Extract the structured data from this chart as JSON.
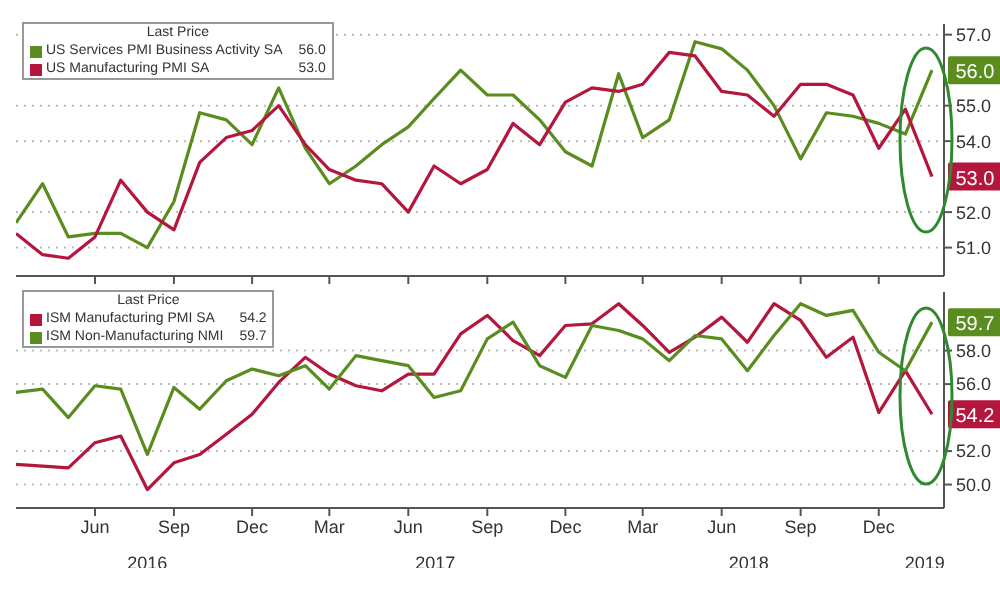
{
  "chart_data": [
    {
      "type": "line",
      "legend_title": "Last Price",
      "legend": "top left",
      "grid": true,
      "line_style": "solid",
      "marker": "none",
      "tick_labels": "y",
      "x": [
        "2016-03",
        "2016-04",
        "2016-05",
        "2016-06",
        "2016-07",
        "2016-08",
        "2016-09",
        "2016-10",
        "2016-11",
        "2016-12",
        "2017-01",
        "2017-02",
        "2017-03",
        "2017-04",
        "2017-05",
        "2017-06",
        "2017-07",
        "2017-08",
        "2017-09",
        "2017-10",
        "2017-11",
        "2017-12",
        "2018-01",
        "2018-02",
        "2018-03",
        "2018-04",
        "2018-05",
        "2018-06",
        "2018-07",
        "2018-08",
        "2018-09",
        "2018-10",
        "2018-11",
        "2018-12",
        "2019-01",
        "2019-02"
      ],
      "xlim": [
        "2016-03",
        "2019-02-15"
      ],
      "xticks": [
        {
          "value": "2016-06",
          "label": null
        },
        {
          "value": "2016-09",
          "label": null
        },
        {
          "value": "2016-12",
          "label": null
        },
        {
          "value": "2017-03",
          "label": null
        },
        {
          "value": "2017-06",
          "label": null
        },
        {
          "value": "2017-09",
          "label": null
        },
        {
          "value": "2017-12",
          "label": null
        },
        {
          "value": "2018-03",
          "label": null
        },
        {
          "value": "2018-06",
          "label": null
        },
        {
          "value": "2018-09",
          "label": null
        },
        {
          "value": "2018-12",
          "label": null
        }
      ],
      "ylim": [
        50.2,
        57.3
      ],
      "yticks": [
        {
          "value": 51,
          "label": "51.0"
        },
        {
          "value": 52,
          "label": "52.0"
        },
        {
          "value": 54,
          "label": "54.0"
        },
        {
          "value": 55,
          "label": "55.0"
        },
        {
          "value": 57,
          "label": "57.0"
        }
      ],
      "series": [
        {
          "name": "US Services PMI Business Activity SA",
          "color": "#5b8c1f",
          "values": [
            51.7,
            52.8,
            51.3,
            51.4,
            51.4,
            51.0,
            52.3,
            54.8,
            54.6,
            53.9,
            55.5,
            53.8,
            52.8,
            53.3,
            53.9,
            54.4,
            55.2,
            56.0,
            55.3,
            55.3,
            54.6,
            53.7,
            53.3,
            55.9,
            54.1,
            54.6,
            56.8,
            56.6,
            56.0,
            55.0,
            53.5,
            54.8,
            54.7,
            54.5,
            54.2,
            56.0
          ],
          "value_labels": [
            null,
            null,
            null,
            null,
            null,
            null,
            null,
            null,
            null,
            null,
            null,
            null,
            null,
            null,
            null,
            null,
            null,
            null,
            null,
            null,
            null,
            null,
            null,
            null,
            null,
            null,
            null,
            null,
            null,
            null,
            null,
            null,
            null,
            null,
            null,
            "56.0"
          ]
        },
        {
          "name": "US Manufacturing PMI SA",
          "color": "#b3173d",
          "values": [
            51.4,
            50.8,
            50.7,
            51.3,
            52.9,
            52.0,
            51.5,
            53.4,
            54.1,
            54.3,
            55.0,
            53.9,
            53.2,
            52.9,
            52.8,
            52.0,
            53.3,
            52.8,
            53.2,
            54.5,
            53.9,
            55.1,
            55.5,
            55.4,
            55.6,
            56.5,
            56.4,
            55.4,
            55.3,
            54.7,
            55.6,
            55.6,
            55.3,
            53.8,
            54.9,
            53.0
          ],
          "value_labels": [
            null,
            null,
            null,
            null,
            null,
            null,
            null,
            null,
            null,
            null,
            null,
            null,
            null,
            null,
            null,
            null,
            null,
            null,
            null,
            null,
            null,
            null,
            null,
            null,
            null,
            null,
            null,
            null,
            null,
            null,
            null,
            null,
            null,
            null,
            null,
            "53.0"
          ]
        }
      ]
    },
    {
      "type": "line",
      "legend_title": "Last Price",
      "legend": "top left",
      "grid": true,
      "line_style": "solid",
      "marker": "none",
      "x": [
        "2016-03",
        "2016-04",
        "2016-05",
        "2016-06",
        "2016-07",
        "2016-08",
        "2016-09",
        "2016-10",
        "2016-11",
        "2016-12",
        "2017-01",
        "2017-02",
        "2017-03",
        "2017-04",
        "2017-05",
        "2017-06",
        "2017-07",
        "2017-08",
        "2017-09",
        "2017-10",
        "2017-11",
        "2017-12",
        "2018-01",
        "2018-02",
        "2018-03",
        "2018-04",
        "2018-05",
        "2018-06",
        "2018-07",
        "2018-08",
        "2018-09",
        "2018-10",
        "2018-11",
        "2018-12",
        "2019-01",
        "2019-02"
      ],
      "xlim": [
        "2016-03",
        "2019-02-15"
      ],
      "xticks": [
        {
          "value": "2016-06",
          "label": "Jun"
        },
        {
          "value": "2016-09",
          "label": "Sep"
        },
        {
          "value": "2016-12",
          "label": "Dec"
        },
        {
          "value": "2017-03",
          "label": "Mar"
        },
        {
          "value": "2017-06",
          "label": "Jun"
        },
        {
          "value": "2017-09",
          "label": "Sep"
        },
        {
          "value": "2017-12",
          "label": "Dec"
        },
        {
          "value": "2018-03",
          "label": "Mar"
        },
        {
          "value": "2018-06",
          "label": "Jun"
        },
        {
          "value": "2018-09",
          "label": "Sep"
        },
        {
          "value": "2018-12",
          "label": "Dec"
        }
      ],
      "ylim": [
        48.6,
        61.5
      ],
      "yticks": [
        {
          "value": 50,
          "label": "50.0"
        },
        {
          "value": 52,
          "label": "52.0"
        },
        {
          "value": 56,
          "label": "56.0"
        },
        {
          "value": 58,
          "label": "58.0"
        }
      ],
      "annotations": [
        "2016",
        "2017",
        "2018",
        "2019"
      ],
      "series": [
        {
          "name": "ISM Manufacturing PMI SA",
          "color": "#b3173d",
          "values": [
            51.2,
            51.1,
            51.0,
            52.5,
            52.9,
            49.7,
            51.3,
            51.8,
            53.0,
            54.2,
            56.1,
            57.6,
            56.6,
            55.9,
            55.6,
            56.6,
            56.6,
            59.0,
            60.1,
            58.6,
            57.7,
            59.5,
            59.6,
            60.8,
            59.5,
            57.9,
            58.8,
            60.0,
            58.5,
            60.8,
            59.8,
            57.6,
            58.8,
            54.3,
            56.8,
            54.2
          ],
          "value_labels": [
            null,
            null,
            null,
            null,
            null,
            null,
            null,
            null,
            null,
            null,
            null,
            null,
            null,
            null,
            null,
            null,
            null,
            null,
            null,
            null,
            null,
            null,
            null,
            null,
            null,
            null,
            null,
            null,
            null,
            null,
            null,
            null,
            null,
            null,
            null,
            "54.2"
          ]
        },
        {
          "name": "ISM Non-Manufacturing NMI",
          "color": "#5b8c1f",
          "values": [
            55.5,
            55.7,
            54.0,
            55.9,
            55.7,
            51.8,
            55.8,
            54.5,
            56.2,
            56.9,
            56.5,
            57.1,
            55.7,
            57.7,
            57.4,
            57.1,
            55.2,
            55.6,
            58.7,
            59.7,
            57.1,
            56.4,
            59.5,
            59.2,
            58.7,
            57.4,
            58.9,
            58.7,
            56.8,
            58.9,
            60.8,
            60.1,
            60.4,
            57.9,
            56.8,
            59.7
          ],
          "value_labels": [
            null,
            null,
            null,
            null,
            null,
            null,
            null,
            null,
            null,
            null,
            null,
            null,
            null,
            null,
            null,
            null,
            null,
            null,
            null,
            null,
            null,
            null,
            null,
            null,
            null,
            null,
            null,
            null,
            null,
            null,
            null,
            null,
            null,
            null,
            null,
            "59.7"
          ]
        }
      ]
    }
  ]
}
